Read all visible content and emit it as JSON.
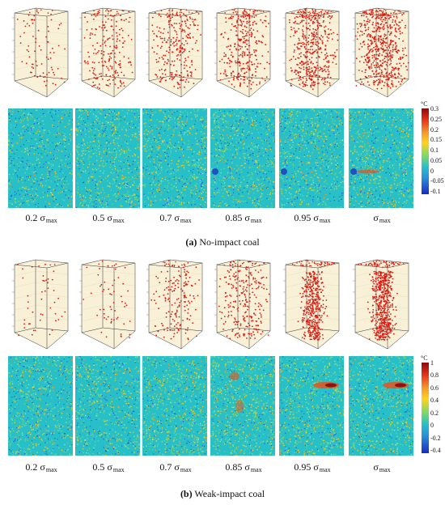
{
  "panels": [
    {
      "id": "a",
      "caption_letter": "(a)",
      "caption_text": "No-impact coal",
      "stress_levels": [
        {
          "coef": "0.2 σ",
          "sub": "max"
        },
        {
          "coef": "0.5 σ",
          "sub": "max"
        },
        {
          "coef": "0.7 σ",
          "sub": "max"
        },
        {
          "coef": "0.85 σ",
          "sub": "max"
        },
        {
          "coef": "0.95 σ",
          "sub": "max"
        },
        {
          "coef": "σ",
          "sub": "max"
        }
      ],
      "ae_event_density": [
        0.12,
        0.35,
        0.45,
        0.55,
        0.8,
        1.0
      ],
      "heat_intensity": [
        0.15,
        0.45,
        0.4,
        0.35,
        0.35,
        0.45
      ],
      "colorbar": {
        "unit": "°C",
        "ticks": [
          "0.3",
          "0.25",
          "0.2",
          "0.15",
          "0.1",
          "0.05",
          "0",
          "-0.05",
          "-0.1"
        ]
      }
    },
    {
      "id": "b",
      "caption_letter": "(b)",
      "caption_text": "Weak-impact coal",
      "stress_levels": [
        {
          "coef": "0.2 σ",
          "sub": "max"
        },
        {
          "coef": "0.5 σ",
          "sub": "max"
        },
        {
          "coef": "0.7 σ",
          "sub": "max"
        },
        {
          "coef": "0.85 σ",
          "sub": "max"
        },
        {
          "coef": "0.95 σ",
          "sub": "max"
        },
        {
          "coef": "σ",
          "sub": "max"
        }
      ],
      "ae_event_density": [
        0.06,
        0.08,
        0.3,
        0.45,
        0.75,
        1.0
      ],
      "heat_intensity": [
        0.3,
        0.25,
        0.5,
        0.6,
        0.45,
        0.45
      ],
      "colorbar": {
        "unit": "°C",
        "ticks": [
          "1",
          "0.8",
          "0.6",
          "0.4",
          "0.2",
          "0",
          "-0.2",
          "-0.4"
        ]
      }
    }
  ],
  "colors": {
    "cube_background": "#f8f1d8",
    "cube_edge": "#333333",
    "ae_point": "#dd1a10",
    "heat_base": "#28c0c8",
    "heat_hot": "#ffd21e",
    "heat_cold": "#1e5cd8"
  }
}
